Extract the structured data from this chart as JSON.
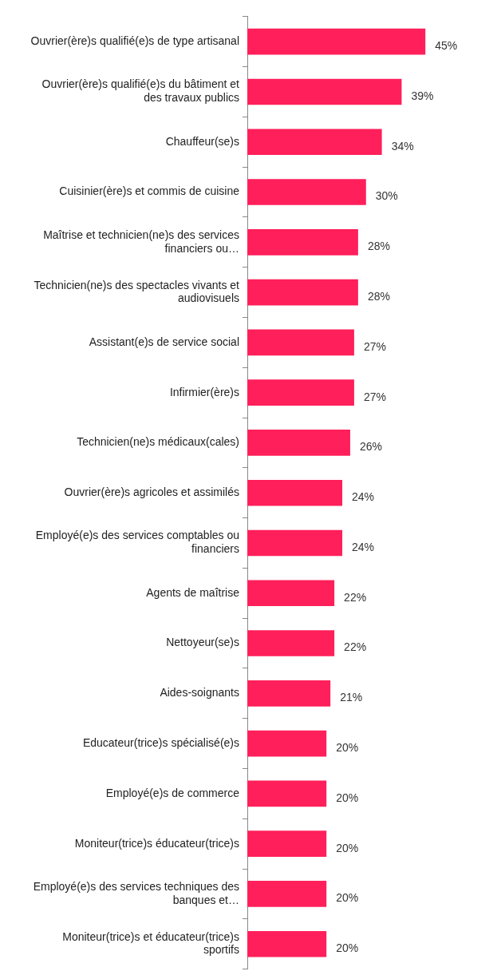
{
  "chart_data": {
    "type": "bar",
    "orientation": "horizontal",
    "categories": [
      "Ouvrier(ère)s qualifié(e)s de type artisanal",
      "Ouvrier(ère)s qualifié(e)s du bâtiment et des travaux publics",
      "Chauffeur(se)s",
      "Cuisinier(ère)s et commis de cuisine",
      "Maîtrise et technicien(ne)s des services financiers ou…",
      "Technicien(ne)s des spectacles vivants et audiovisuels",
      "Assistant(e)s de service social",
      "Infirmier(ère)s",
      "Technicien(ne)s médicaux(cales)",
      "Ouvrier(ère)s agricoles et assimilés",
      "Employé(e)s des services comptables ou financiers",
      "Agents de maîtrise",
      "Nettoyeur(se)s",
      "Aides-soignants",
      "Educateur(trice)s spécialisé(e)s",
      "Employé(e)s de commerce",
      "Moniteur(trice)s éducateur(trice)s",
      "Employé(e)s des services techniques des banques et…",
      "Moniteur(trice)s et éducateur(trice)s sportifs"
    ],
    "values": [
      45,
      39,
      34,
      30,
      28,
      28,
      27,
      27,
      26,
      24,
      24,
      22,
      22,
      21,
      20,
      20,
      20,
      20,
      20
    ],
    "value_labels": [
      "45%",
      "39%",
      "34%",
      "30%",
      "28%",
      "28%",
      "27%",
      "27%",
      "26%",
      "24%",
      "24%",
      "22%",
      "22%",
      "21%",
      "20%",
      "20%",
      "20%",
      "20%",
      "20%"
    ],
    "color": "#ff1f5a",
    "grid": false,
    "legend": false,
    "tick_labels": "y"
  }
}
